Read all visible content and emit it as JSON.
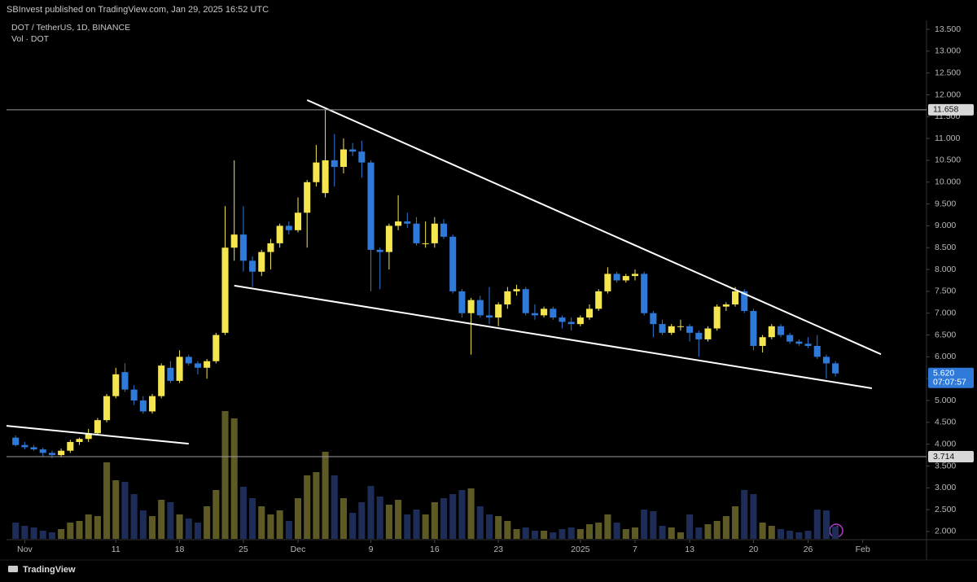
{
  "header": {
    "published": "SBInvest published on TradingView.com, Jan 29, 2025 16:52 UTC",
    "footer": "TradingView"
  },
  "chart_data": {
    "type": "candlestick",
    "symbol": "DOT / TetherUS, 1D, BINANCE",
    "volume_label": "Vol · DOT",
    "up_color": "#f5e650",
    "down_color": "#2f7ad8",
    "up_volume_color": "#5e5a26",
    "down_volume_color": "#1e2d58",
    "x": [
      "2024-10-31",
      "2024-11-01",
      "2024-11-02",
      "2024-11-03",
      "2024-11-04",
      "2024-11-05",
      "2024-11-06",
      "2024-11-07",
      "2024-11-08",
      "2024-11-09",
      "2024-11-10",
      "2024-11-11",
      "2024-11-12",
      "2024-11-13",
      "2024-11-14",
      "2024-11-15",
      "2024-11-16",
      "2024-11-17",
      "2024-11-18",
      "2024-11-19",
      "2024-11-20",
      "2024-11-21",
      "2024-11-22",
      "2024-11-23",
      "2024-11-24",
      "2024-11-25",
      "2024-11-26",
      "2024-11-27",
      "2024-11-28",
      "2024-11-29",
      "2024-11-30",
      "2024-12-01",
      "2024-12-02",
      "2024-12-03",
      "2024-12-04",
      "2024-12-05",
      "2024-12-06",
      "2024-12-07",
      "2024-12-08",
      "2024-12-09",
      "2024-12-10",
      "2024-12-11",
      "2024-12-12",
      "2024-12-13",
      "2024-12-14",
      "2024-12-15",
      "2024-12-16",
      "2024-12-17",
      "2024-12-18",
      "2024-12-19",
      "2024-12-20",
      "2024-12-21",
      "2024-12-22",
      "2024-12-23",
      "2024-12-24",
      "2024-12-25",
      "2024-12-26",
      "2024-12-27",
      "2024-12-28",
      "2024-12-29",
      "2024-12-30",
      "2024-12-31",
      "2025-01-01",
      "2025-01-02",
      "2025-01-03",
      "2025-01-04",
      "2025-01-05",
      "2025-01-06",
      "2025-01-07",
      "2025-01-08",
      "2025-01-09",
      "2025-01-10",
      "2025-01-11",
      "2025-01-12",
      "2025-01-13",
      "2025-01-14",
      "2025-01-15",
      "2025-01-16",
      "2025-01-17",
      "2025-01-18",
      "2025-01-19",
      "2025-01-20",
      "2025-01-21",
      "2025-01-22",
      "2025-01-23",
      "2025-01-24",
      "2025-01-25",
      "2025-01-26",
      "2025-01-27",
      "2025-01-28",
      "2025-01-29"
    ],
    "open": [
      4.15,
      3.98,
      3.93,
      3.88,
      3.8,
      3.75,
      3.85,
      4.05,
      4.12,
      4.25,
      4.55,
      5.1,
      5.65,
      5.25,
      5.0,
      4.75,
      5.1,
      5.75,
      5.45,
      6.0,
      5.85,
      5.75,
      5.9,
      6.55,
      8.5,
      8.8,
      8.2,
      7.95,
      8.4,
      8.6,
      9.0,
      8.9,
      9.3,
      10.0,
      9.75,
      10.5,
      10.35,
      10.75,
      10.7,
      10.45,
      8.45,
      8.4,
      9.0,
      9.1,
      9.05,
      8.6,
      8.6,
      9.05,
      8.75,
      7.5,
      7.0,
      7.3,
      6.95,
      6.9,
      7.2,
      7.5,
      7.55,
      7.0,
      6.95,
      7.1,
      6.9,
      6.8,
      6.75,
      6.9,
      7.1,
      7.5,
      7.9,
      7.75,
      7.85,
      7.9,
      7.0,
      6.75,
      6.55,
      6.7,
      6.7,
      6.55,
      6.4,
      6.65,
      7.15,
      7.2,
      7.5,
      7.05,
      6.25,
      6.45,
      6.7,
      6.5,
      6.35,
      6.3,
      6.25,
      6.0,
      5.85
    ],
    "high": [
      4.2,
      4.05,
      3.98,
      3.92,
      3.85,
      3.9,
      4.1,
      4.15,
      4.35,
      4.6,
      5.15,
      5.75,
      5.85,
      5.35,
      5.1,
      5.15,
      5.85,
      5.9,
      6.15,
      6.05,
      5.9,
      5.95,
      6.55,
      9.45,
      10.5,
      9.45,
      8.3,
      8.45,
      8.7,
      9.05,
      9.1,
      9.65,
      10.05,
      10.85,
      11.658,
      11.1,
      11.0,
      10.9,
      10.95,
      10.5,
      8.5,
      9.05,
      9.7,
      9.3,
      9.2,
      9.1,
      9.2,
      9.15,
      8.8,
      7.55,
      7.35,
      7.4,
      7.6,
      7.25,
      7.6,
      7.65,
      7.6,
      7.2,
      7.15,
      7.15,
      6.95,
      6.9,
      6.95,
      7.2,
      7.55,
      8.05,
      7.95,
      7.9,
      8.0,
      7.95,
      7.05,
      6.85,
      6.75,
      6.85,
      6.75,
      6.6,
      6.7,
      7.2,
      7.25,
      7.6,
      7.55,
      7.1,
      6.5,
      6.75,
      6.75,
      6.55,
      6.4,
      6.45,
      6.5,
      6.05,
      5.9
    ],
    "low": [
      3.95,
      3.88,
      3.85,
      3.72,
      3.68,
      3.7,
      3.8,
      3.98,
      4.05,
      4.2,
      4.5,
      5.05,
      5.2,
      4.9,
      4.7,
      4.7,
      5.05,
      5.4,
      5.4,
      5.8,
      5.6,
      5.5,
      5.85,
      6.5,
      8.2,
      7.95,
      7.6,
      7.85,
      8.0,
      8.5,
      8.8,
      8.85,
      8.5,
      9.9,
      9.65,
      9.9,
      10.2,
      10.6,
      10.1,
      7.5,
      7.55,
      8.0,
      8.9,
      8.95,
      8.55,
      8.5,
      8.5,
      8.7,
      7.45,
      6.9,
      6.05,
      6.9,
      6.75,
      6.7,
      7.1,
      7.4,
      6.95,
      6.85,
      6.9,
      6.85,
      6.65,
      6.6,
      6.7,
      6.85,
      7.05,
      7.45,
      7.7,
      7.7,
      7.75,
      6.95,
      6.45,
      6.5,
      6.5,
      6.6,
      6.35,
      6.0,
      6.35,
      6.6,
      7.05,
      7.15,
      7.0,
      6.15,
      6.1,
      6.4,
      6.45,
      6.3,
      6.25,
      6.2,
      5.95,
      5.5,
      5.55
    ],
    "close": [
      3.98,
      3.93,
      3.88,
      3.8,
      3.75,
      3.85,
      4.05,
      4.12,
      4.25,
      4.55,
      5.1,
      5.6,
      5.25,
      5.0,
      4.75,
      5.1,
      5.8,
      5.45,
      6.0,
      5.85,
      5.75,
      5.9,
      6.5,
      8.5,
      8.8,
      8.2,
      7.95,
      8.4,
      8.6,
      9.0,
      8.9,
      9.3,
      10.0,
      10.45,
      10.5,
      10.35,
      10.75,
      10.7,
      10.45,
      8.45,
      8.4,
      9.0,
      9.1,
      9.05,
      8.6,
      8.6,
      9.05,
      8.75,
      7.5,
      7.0,
      7.3,
      6.95,
      6.9,
      7.2,
      7.5,
      7.55,
      7.0,
      6.95,
      7.1,
      6.9,
      6.8,
      6.75,
      6.9,
      7.1,
      7.5,
      7.9,
      7.75,
      7.85,
      7.9,
      7.0,
      6.75,
      6.55,
      6.7,
      6.7,
      6.55,
      6.4,
      6.65,
      7.15,
      7.2,
      7.5,
      7.05,
      6.25,
      6.45,
      6.7,
      6.5,
      6.35,
      6.3,
      6.25,
      6.0,
      5.85,
      5.62
    ],
    "volume": [
      20,
      16,
      14,
      10,
      8,
      12,
      20,
      22,
      30,
      28,
      94,
      72,
      70,
      55,
      35,
      28,
      48,
      45,
      30,
      25,
      20,
      40,
      60,
      157,
      148,
      64,
      50,
      40,
      30,
      35,
      22,
      50,
      78,
      82,
      107,
      78,
      50,
      32,
      45,
      65,
      52,
      42,
      48,
      30,
      36,
      30,
      45,
      50,
      55,
      60,
      62,
      40,
      30,
      28,
      22,
      12,
      14,
      10,
      10,
      8,
      12,
      14,
      12,
      18,
      20,
      30,
      20,
      12,
      14,
      36,
      34,
      16,
      14,
      8,
      30,
      14,
      18,
      22,
      28,
      40,
      60,
      55,
      20,
      16,
      12,
      10,
      8,
      10,
      36,
      35,
      15
    ],
    "xlim": [
      "2024-10-30",
      "2025-02-08"
    ],
    "xticks": [
      {
        "value": "2024-11-01",
        "label": "Nov"
      },
      {
        "value": "2024-11-11",
        "label": "11"
      },
      {
        "value": "2024-11-18",
        "label": "18"
      },
      {
        "value": "2024-11-25",
        "label": "25"
      },
      {
        "value": "2024-12-01",
        "label": "Dec"
      },
      {
        "value": "2024-12-09",
        "label": "9"
      },
      {
        "value": "2024-12-16",
        "label": "16"
      },
      {
        "value": "2024-12-23",
        "label": "23"
      },
      {
        "value": "2025-01-01",
        "label": "2025"
      },
      {
        "value": "2025-01-07",
        "label": "7"
      },
      {
        "value": "2025-01-13",
        "label": "13"
      },
      {
        "value": "2025-01-20",
        "label": "20"
      },
      {
        "value": "2025-01-26",
        "label": "26"
      },
      {
        "value": "2025-02-01",
        "label": "Feb"
      }
    ],
    "ylim": [
      1.813,
      13.705
    ],
    "yticks": [
      {
        "value": 2,
        "label": "2.000"
      },
      {
        "value": 2.5,
        "label": "2.500"
      },
      {
        "value": 3,
        "label": "3.000"
      },
      {
        "value": 3.5,
        "label": "3.500"
      },
      {
        "value": 4,
        "label": "4.000"
      },
      {
        "value": 4.5,
        "label": "4.500"
      },
      {
        "value": 5,
        "label": "5.000"
      },
      {
        "value": 5.5,
        "label": "5.500"
      },
      {
        "value": 6,
        "label": "6.000"
      },
      {
        "value": 6.5,
        "label": "6.500"
      },
      {
        "value": 7,
        "label": "7.000"
      },
      {
        "value": 7.5,
        "label": "7.500"
      },
      {
        "value": 8,
        "label": "8.000"
      },
      {
        "value": 8.5,
        "label": "8.500"
      },
      {
        "value": 9,
        "label": "9.000"
      },
      {
        "value": 9.5,
        "label": "9.500"
      },
      {
        "value": 10,
        "label": "10.000"
      },
      {
        "value": 10.5,
        "label": "10.500"
      },
      {
        "value": 11,
        "label": "11.000"
      },
      {
        "value": 11.5,
        "label": "11.500"
      },
      {
        "value": 12,
        "label": "12.000"
      },
      {
        "value": 12.5,
        "label": "12.500"
      },
      {
        "value": 13,
        "label": "13.000"
      },
      {
        "value": 13.5,
        "label": "13.500"
      }
    ],
    "horizontal_lines": [
      {
        "value": 11.658,
        "label": "11.658"
      },
      {
        "value": 3.714,
        "label": "3.714"
      }
    ],
    "last_price": {
      "value": 5.62,
      "label": "5.620",
      "countdown": "07:07:57"
    },
    "trend_lines": [
      {
        "x": [
          "2024-12-02",
          "2025-02-03"
        ],
        "y": [
          11.88,
          6.06
        ]
      },
      {
        "x": [
          "2024-11-24",
          "2025-02-02"
        ],
        "y": [
          7.63,
          5.28
        ]
      },
      {
        "x": [
          "2024-10-30",
          "2024-11-19"
        ],
        "y": [
          4.42,
          4.01
        ]
      }
    ],
    "trend_color": "#ffffff"
  }
}
